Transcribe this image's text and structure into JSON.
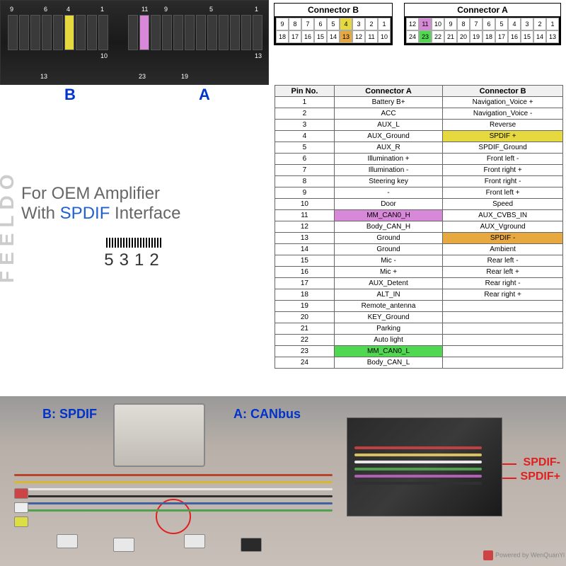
{
  "watermark_brand": "FEELDO",
  "watermark_powered": "Powered by WenQuanYi",
  "photo_conn_labels": {
    "b": "B",
    "a": "A"
  },
  "photo_top_pins_left": {
    "top": [
      "9",
      "",
      "",
      "6",
      "",
      "4",
      "",
      "",
      "1"
    ],
    "bottom_left": "",
    "bottom_13": "13",
    "bottom_10": "10"
  },
  "diagram": {
    "connB": {
      "title": "Connector B",
      "row1": [
        "9",
        "8",
        "7",
        "6",
        "5",
        "4",
        "3",
        "2",
        "1"
      ],
      "row2": [
        "18",
        "17",
        "16",
        "15",
        "14",
        "13",
        "12",
        "11",
        "10"
      ],
      "highlight": {
        "4": "y",
        "13": "o"
      }
    },
    "connA": {
      "title": "Connector A",
      "row1": [
        "12",
        "11",
        "10",
        "9",
        "8",
        "7",
        "6",
        "5",
        "4",
        "3",
        "2",
        "1"
      ],
      "row2": [
        "24",
        "23",
        "22",
        "21",
        "20",
        "19",
        "18",
        "17",
        "16",
        "15",
        "14",
        "13"
      ],
      "highlight": {
        "11": "m",
        "23": "g"
      }
    }
  },
  "left_text": {
    "line1": "For OEM Amplifier",
    "line2_a": "With ",
    "line2_b": "SPDIF",
    "line2_c": " Interface"
  },
  "barcode_number": "5312",
  "table": {
    "headers": [
      "Pin No.",
      "Connector A",
      "Connector B"
    ],
    "rows": [
      {
        "n": "1",
        "a": "Battery B+",
        "b": "Navigation_Voice +",
        "ha": "",
        "hb": ""
      },
      {
        "n": "2",
        "a": "ACC",
        "b": "Navigation_Voice -",
        "ha": "",
        "hb": ""
      },
      {
        "n": "3",
        "a": "AUX_L",
        "b": "Reverse",
        "ha": "",
        "hb": ""
      },
      {
        "n": "4",
        "a": "AUX_Ground",
        "b": "SPDIF +",
        "ha": "",
        "hb": "y"
      },
      {
        "n": "5",
        "a": "AUX_R",
        "b": "SPDIF_Ground",
        "ha": "",
        "hb": ""
      },
      {
        "n": "6",
        "a": "Illumination +",
        "b": "Front left -",
        "ha": "",
        "hb": ""
      },
      {
        "n": "7",
        "a": "Illumination -",
        "b": "Front right +",
        "ha": "",
        "hb": ""
      },
      {
        "n": "8",
        "a": "Steering key",
        "b": "Front right -",
        "ha": "",
        "hb": ""
      },
      {
        "n": "9",
        "a": "-",
        "b": "Front left +",
        "ha": "",
        "hb": ""
      },
      {
        "n": "10",
        "a": "Door",
        "b": "Speed",
        "ha": "",
        "hb": ""
      },
      {
        "n": "11",
        "a": "MM_CAN0_H",
        "b": "AUX_CVBS_IN",
        "ha": "m",
        "hb": ""
      },
      {
        "n": "12",
        "a": "Body_CAN_H",
        "b": "AUX_Vground",
        "ha": "",
        "hb": ""
      },
      {
        "n": "13",
        "a": "Ground",
        "b": "SPDIF -",
        "ha": "",
        "hb": "o"
      },
      {
        "n": "14",
        "a": "Ground",
        "b": "Ambient",
        "ha": "",
        "hb": ""
      },
      {
        "n": "15",
        "a": "Mic -",
        "b": "Rear left -",
        "ha": "",
        "hb": ""
      },
      {
        "n": "16",
        "a": "Mic +",
        "b": "Rear left +",
        "ha": "",
        "hb": ""
      },
      {
        "n": "17",
        "a": "AUX_Detent",
        "b": "Rear right -",
        "ha": "",
        "hb": ""
      },
      {
        "n": "18",
        "a": "ALT_IN",
        "b": "Rear right +",
        "ha": "",
        "hb": ""
      },
      {
        "n": "19",
        "a": "Remote_antenna",
        "b": "",
        "ha": "",
        "hb": ""
      },
      {
        "n": "20",
        "a": "KEY_Ground",
        "b": "",
        "ha": "",
        "hb": ""
      },
      {
        "n": "21",
        "a": "Parking",
        "b": "",
        "ha": "",
        "hb": ""
      },
      {
        "n": "22",
        "a": "Auto light",
        "b": "",
        "ha": "",
        "hb": ""
      },
      {
        "n": "23",
        "a": "MM_CAN0_L",
        "b": "",
        "ha": "g",
        "hb": ""
      },
      {
        "n": "24",
        "a": "Body_CAN_L",
        "b": "",
        "ha": "",
        "hb": ""
      }
    ]
  },
  "photo_bottom": {
    "label_b": "B: SPDIF",
    "label_a": "A: CANbus",
    "spdif_neg": "SPDIF-",
    "spdif_pos": "SPDIF+"
  },
  "colors": {
    "blue_text": "#0033cc",
    "red_text": "#e02020",
    "highlight_yellow": "#e6d940",
    "highlight_magenta": "#d888d8",
    "highlight_orange": "#e8a840",
    "highlight_green": "#50d850"
  }
}
